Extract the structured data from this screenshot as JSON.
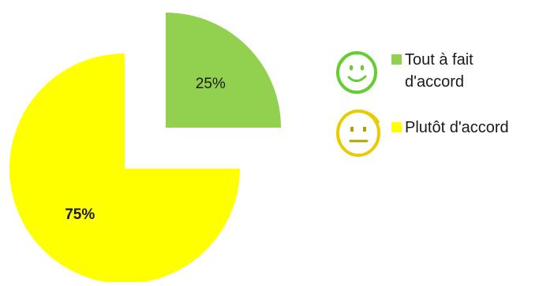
{
  "chart_data": {
    "type": "pie",
    "title": "",
    "slices": [
      {
        "label": "Tout à fait d'accord",
        "value": 25,
        "data_label": "25%",
        "color": "#92d050",
        "label_bold": false,
        "exploded": true,
        "face": "smiley-happy-icon"
      },
      {
        "label": "Plutôt d'accord",
        "value": 75,
        "data_label": "75%",
        "color": "#ffff00",
        "label_bold": true,
        "exploded": false,
        "face": "smiley-neutral-icon"
      }
    ],
    "legend_position": "right"
  },
  "colors": {
    "happy_face_stroke": "#66cc33",
    "neutral_face_stroke": "#e8cc00",
    "text": "#1a1a1a"
  }
}
